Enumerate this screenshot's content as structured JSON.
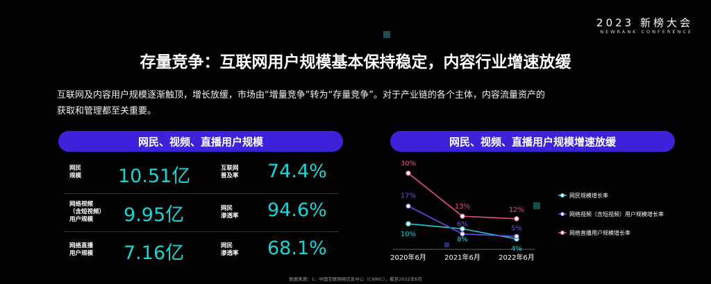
{
  "brand": {
    "title": "2023 新榜大会",
    "subtitle": "NEWRANK CONFERENCE"
  },
  "headline": "存量竞争：互联网用户规模基本保持稳定，内容行业增速放缓",
  "intro": {
    "line1": "互联网及内容用户规模逐渐触顶，增长放缓，市场由“增量竞争”转为“存量竞争”。对于产业链的各个主体，内容流量资产的",
    "line2": "获取和管理都至关重要。"
  },
  "left_panel": {
    "title": "网民、视频、直播用户规模",
    "stats": [
      {
        "label": [
          "网民",
          "规模"
        ],
        "value": "10.51亿"
      },
      {
        "label": [
          "互联网",
          "普及率"
        ],
        "value": "74.4%"
      },
      {
        "label": [
          "网络视频",
          "（含短视频）",
          "用户规模"
        ],
        "value": "9.95亿"
      },
      {
        "label": [
          "网民",
          "渗透率"
        ],
        "value": "94.6%"
      },
      {
        "label": [
          "网络直播",
          "用户规模"
        ],
        "value": "7.16亿"
      },
      {
        "label": [
          "网民",
          "渗透率"
        ],
        "value": "68.1%"
      }
    ]
  },
  "chart_data": {
    "type": "line",
    "title": "网民、视频、直播用户规模增速放缓",
    "x": [
      "2020年6月",
      "2021年6月",
      "2022年6月"
    ],
    "series": [
      {
        "name": "网民规模增长率",
        "values": [
          10,
          8,
          4
        ],
        "labels": [
          "10%",
          "8%",
          "4%"
        ],
        "color": "#20cfd8"
      },
      {
        "name": "网络视频（含短视频）用户规模增长率",
        "values": [
          17,
          6,
          5
        ],
        "labels": [
          "17%",
          "6%",
          "5%"
        ],
        "color": "#6a4fe6"
      },
      {
        "name": "网络直播用户规模增长率",
        "values": [
          30,
          13,
          12
        ],
        "labels": [
          "30%",
          "13%",
          "12%"
        ],
        "color": "#e8537a"
      }
    ],
    "legend_position": "right"
  },
  "source": "数据来源：1、中国互联网络信息中心（CNNIC），截至2022年6月",
  "colors": {
    "accent": "#3c22d8",
    "number": "#19d6d6"
  }
}
